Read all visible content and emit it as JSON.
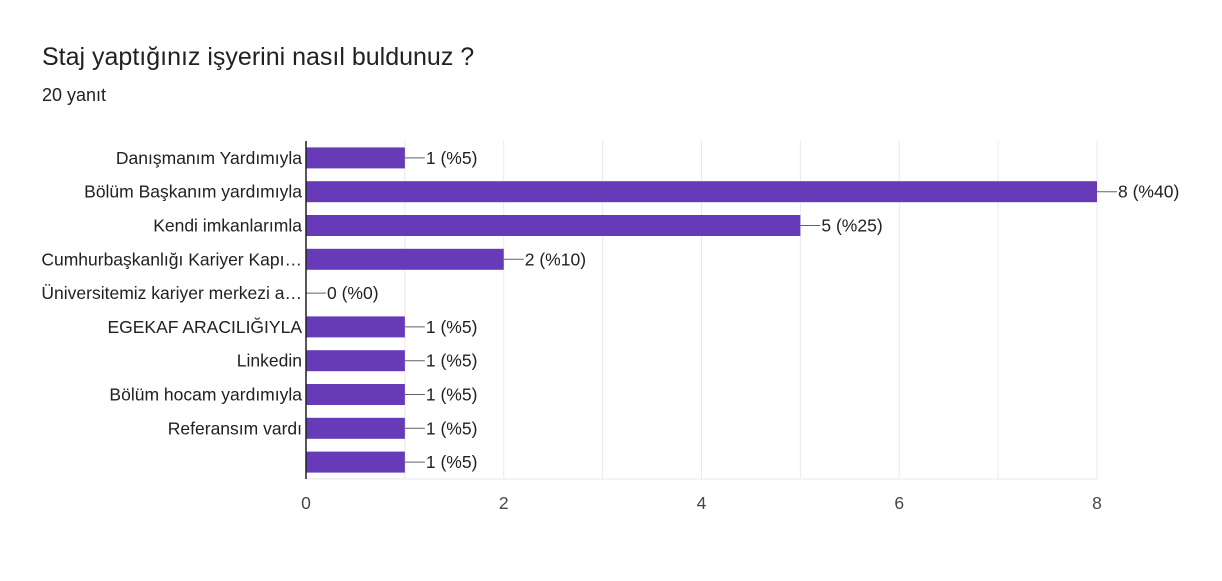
{
  "header": {
    "title": "Staj yaptığınız işyerini nasıl buldunuz ?",
    "response_count": "20 yanıt"
  },
  "colors": {
    "bar": "#673ab7",
    "grid": "#e8eaed",
    "axis": "#202124",
    "text": "#202124"
  },
  "chart_data": {
    "type": "bar",
    "orientation": "horizontal",
    "categories": [
      "Danışmanım Yardımıyla",
      "Bölüm Başkanım yardımıyla",
      "Kendi imkanlarımla",
      "Cumhurbaşkanlığı Kariyer Kapı…",
      "Üniversitemiz kariyer merkezi a…",
      "EGEKAF ARACILIĞIYLA",
      "Linkedin",
      "Bölüm hocam yardımıyla",
      "Referansım vardı",
      ""
    ],
    "values": [
      1,
      8,
      5,
      2,
      0,
      1,
      1,
      1,
      1,
      1
    ],
    "value_labels": [
      "1 (%5)",
      "8 (%40)",
      "5 (%25)",
      "2 (%10)",
      "0 (%0)",
      "1 (%5)",
      "1 (%5)",
      "1 (%5)",
      "1 (%5)",
      "1 (%5)"
    ],
    "xlim": [
      0,
      8
    ],
    "xticks": [
      "0",
      "2",
      "4",
      "6",
      "8"
    ],
    "grid": true,
    "legend": false
  }
}
